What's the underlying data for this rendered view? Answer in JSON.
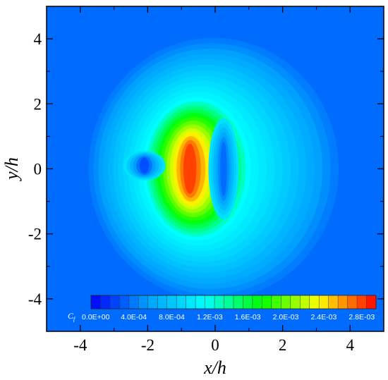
{
  "chart_data": {
    "type": "heatmap",
    "title": "",
    "xlabel": "x/h",
    "ylabel": "y/h",
    "xlim": [
      -5,
      5
    ],
    "ylim": [
      -5,
      5
    ],
    "xticks": [
      -4,
      -2,
      0,
      2,
      4
    ],
    "yticks": [
      -4,
      -2,
      0,
      2,
      4
    ],
    "x_tick_labels": [
      "-4",
      "-2",
      "0",
      "2",
      "4"
    ],
    "y_tick_labels": [
      "-4",
      "-2",
      "0",
      "2",
      "4"
    ],
    "grid": false,
    "colorbar": {
      "title": "C",
      "title_subscript": "f",
      "placement": "bottom-inside",
      "min": 0.0,
      "max": 0.003,
      "levels": 30,
      "tick_values": [
        0.0,
        0.0004,
        0.0008,
        0.0012,
        0.0016,
        0.002,
        0.0024,
        0.0028
      ],
      "tick_labels": [
        "0.0E+00",
        "4.0E-04",
        "8.0E-04",
        "1.2E-03",
        "1.6E-03",
        "2.0E-03",
        "2.4E-03",
        "2.8E-03"
      ],
      "colors": [
        "#0000ff",
        "#00a0ff",
        "#00ffff",
        "#00ff00",
        "#ffff00",
        "#ff0000"
      ]
    },
    "field_features": [
      {
        "kind": "background",
        "value": 0.0004
      },
      {
        "kind": "plume",
        "x": 0.0,
        "y": 0.0,
        "rx": 3.9,
        "ry": 4.2,
        "value": 0.0012
      },
      {
        "kind": "peak",
        "x": -0.75,
        "y": 0.0,
        "rx": 0.55,
        "ry": 1.4,
        "value": 0.00285
      },
      {
        "kind": "low",
        "x": 0.25,
        "y": 0.0,
        "rx": 0.25,
        "ry": 1.2,
        "value": 0.0004
      },
      {
        "kind": "low",
        "x": -2.1,
        "y": 0.1,
        "rx": 0.35,
        "ry": 0.35,
        "value": 0.0003
      }
    ]
  }
}
